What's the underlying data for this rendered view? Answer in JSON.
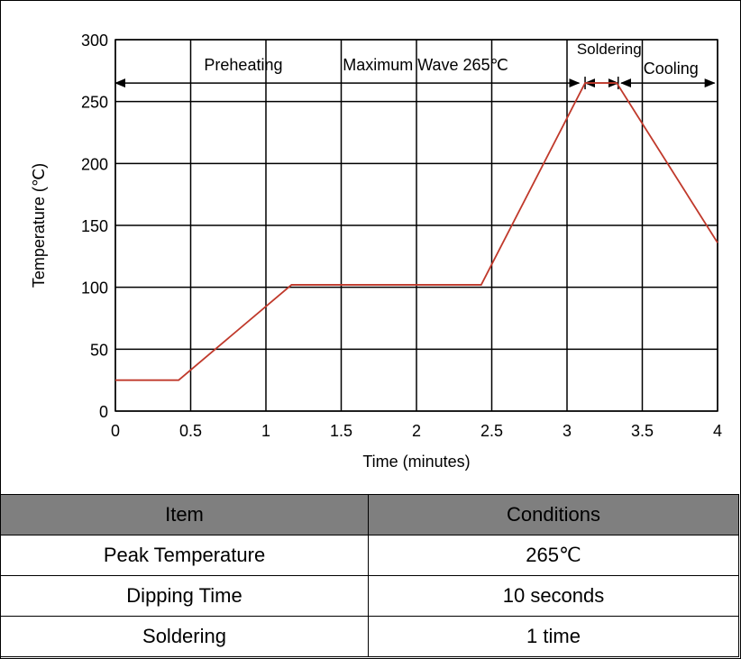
{
  "chart_data": {
    "type": "line",
    "title": "",
    "xlabel": "Time (minutes)",
    "ylabel": "Temperature (℃)",
    "xlim": [
      0,
      4
    ],
    "ylim": [
      0,
      300
    ],
    "x_ticks": [
      "0",
      "0.5",
      "1",
      "1.5",
      "2",
      "2.5",
      "3",
      "3.5",
      "4"
    ],
    "y_ticks": [
      "0",
      "50",
      "100",
      "150",
      "200",
      "250",
      "300"
    ],
    "grid": true,
    "series": [
      {
        "color": "#c0392b",
        "points": [
          {
            "x": 0,
            "y": 25
          },
          {
            "x": 0.42,
            "y": 25
          },
          {
            "x": 1.17,
            "y": 102
          },
          {
            "x": 2.43,
            "y": 102
          },
          {
            "x": 3.12,
            "y": 265
          },
          {
            "x": 3.33,
            "y": 265
          },
          {
            "x": 4,
            "y": 136
          }
        ]
      }
    ],
    "annotations": {
      "preheating": "Preheating",
      "maximum_wave": "Maximum Wave 265℃",
      "soldering": "Soldering",
      "cooling": "Cooling"
    },
    "phase_spans": [
      {
        "label": "preheating",
        "from": 0,
        "to": 3.08
      },
      {
        "label": "soldering",
        "from": 3.12,
        "to": 3.34
      },
      {
        "label": "cooling",
        "from": 3.36,
        "to": 3.98
      }
    ],
    "phase_arrow_y": 265
  },
  "table": {
    "headers": [
      "Item",
      "Conditions"
    ],
    "rows": [
      [
        "Peak Temperature",
        "265℃"
      ],
      [
        "Dipping Time",
        "10 seconds"
      ],
      [
        "Soldering",
        "1 time"
      ]
    ]
  }
}
